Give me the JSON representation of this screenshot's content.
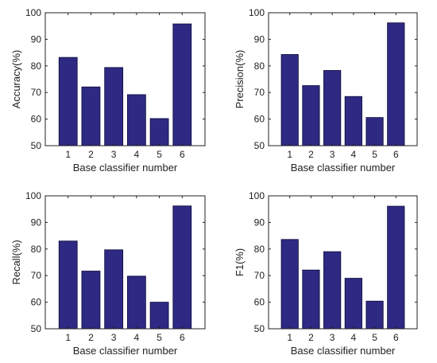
{
  "colors": {
    "bar_fill": "#2e2982",
    "bar_stroke": "#0d0b3a",
    "axis": "#222222"
  },
  "chart_data": [
    {
      "type": "bar",
      "categories": [
        "1",
        "2",
        "3",
        "4",
        "5",
        "6"
      ],
      "values": [
        83.2,
        72.1,
        79.4,
        69.2,
        60.2,
        95.8
      ],
      "title": "",
      "xlabel": "Base classifier number",
      "ylabel": "Accuracy(%)",
      "ylim": [
        50,
        100
      ],
      "yticks": [
        "50",
        "60",
        "70",
        "80",
        "90",
        "100"
      ],
      "grid": false
    },
    {
      "type": "bar",
      "categories": [
        "1",
        "2",
        "3",
        "4",
        "5",
        "6"
      ],
      "values": [
        84.3,
        72.6,
        78.3,
        68.5,
        60.6,
        96.2
      ],
      "title": "",
      "xlabel": "Base classifier number",
      "ylabel": "Precision(%)",
      "ylim": [
        50,
        100
      ],
      "yticks": [
        "50",
        "60",
        "70",
        "80",
        "90",
        "100"
      ],
      "grid": false
    },
    {
      "type": "bar",
      "categories": [
        "1",
        "2",
        "3",
        "4",
        "5",
        "6"
      ],
      "values": [
        83.0,
        71.7,
        79.7,
        69.8,
        60.0,
        96.2
      ],
      "title": "",
      "xlabel": "Base classifier number",
      "ylabel": "Recall(%)",
      "ylim": [
        50,
        100
      ],
      "yticks": [
        "50",
        "60",
        "70",
        "80",
        "90",
        "100"
      ],
      "grid": false
    },
    {
      "type": "bar",
      "categories": [
        "1",
        "2",
        "3",
        "4",
        "5",
        "6"
      ],
      "values": [
        83.6,
        72.1,
        79.0,
        69.0,
        60.4,
        96.1
      ],
      "title": "",
      "xlabel": "Base classifier number",
      "ylabel": "F1(%)",
      "ylim": [
        50,
        100
      ],
      "yticks": [
        "50",
        "60",
        "70",
        "80",
        "90",
        "100"
      ],
      "grid": false
    }
  ]
}
